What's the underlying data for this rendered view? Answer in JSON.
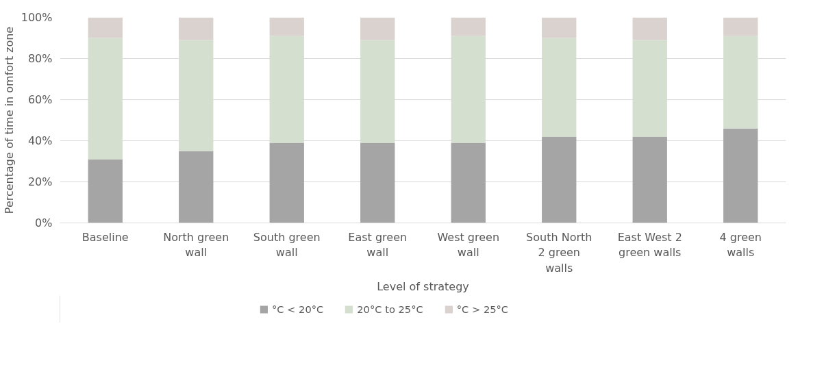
{
  "chart_data": {
    "type": "bar",
    "stacked": true,
    "xlabel": "Level of strategy",
    "ylabel": "Percentage of time in omfort zone",
    "categories": [
      "Baseline",
      "North green wall",
      "South green wall",
      "East green wall",
      "West green wall",
      "South North 2 green walls",
      "East West 2 green walls",
      "4 green walls"
    ],
    "series": [
      {
        "name": "°C < 20°C",
        "color": "#a5a5a5",
        "values": [
          31,
          35,
          39,
          39,
          39,
          42,
          42,
          46
        ]
      },
      {
        "name": "20°C to 25°C",
        "color": "#d5dfd0",
        "values": [
          59,
          54,
          52,
          50,
          52,
          48,
          47,
          45
        ]
      },
      {
        "name": "°C > 25°C",
        "color": "#d9d2ce",
        "values": [
          10,
          11,
          9,
          11,
          9,
          10,
          11,
          9
        ]
      }
    ],
    "ylim": [
      0,
      100
    ],
    "yticks": [
      {
        "value": 0,
        "label": "0%"
      },
      {
        "value": 20,
        "label": "20%"
      },
      {
        "value": 40,
        "label": "40%"
      },
      {
        "value": 60,
        "label": "60%"
      },
      {
        "value": 80,
        "label": "80%"
      },
      {
        "value": 100,
        "label": "100%"
      }
    ],
    "grid": "y",
    "legend": "bottom"
  }
}
